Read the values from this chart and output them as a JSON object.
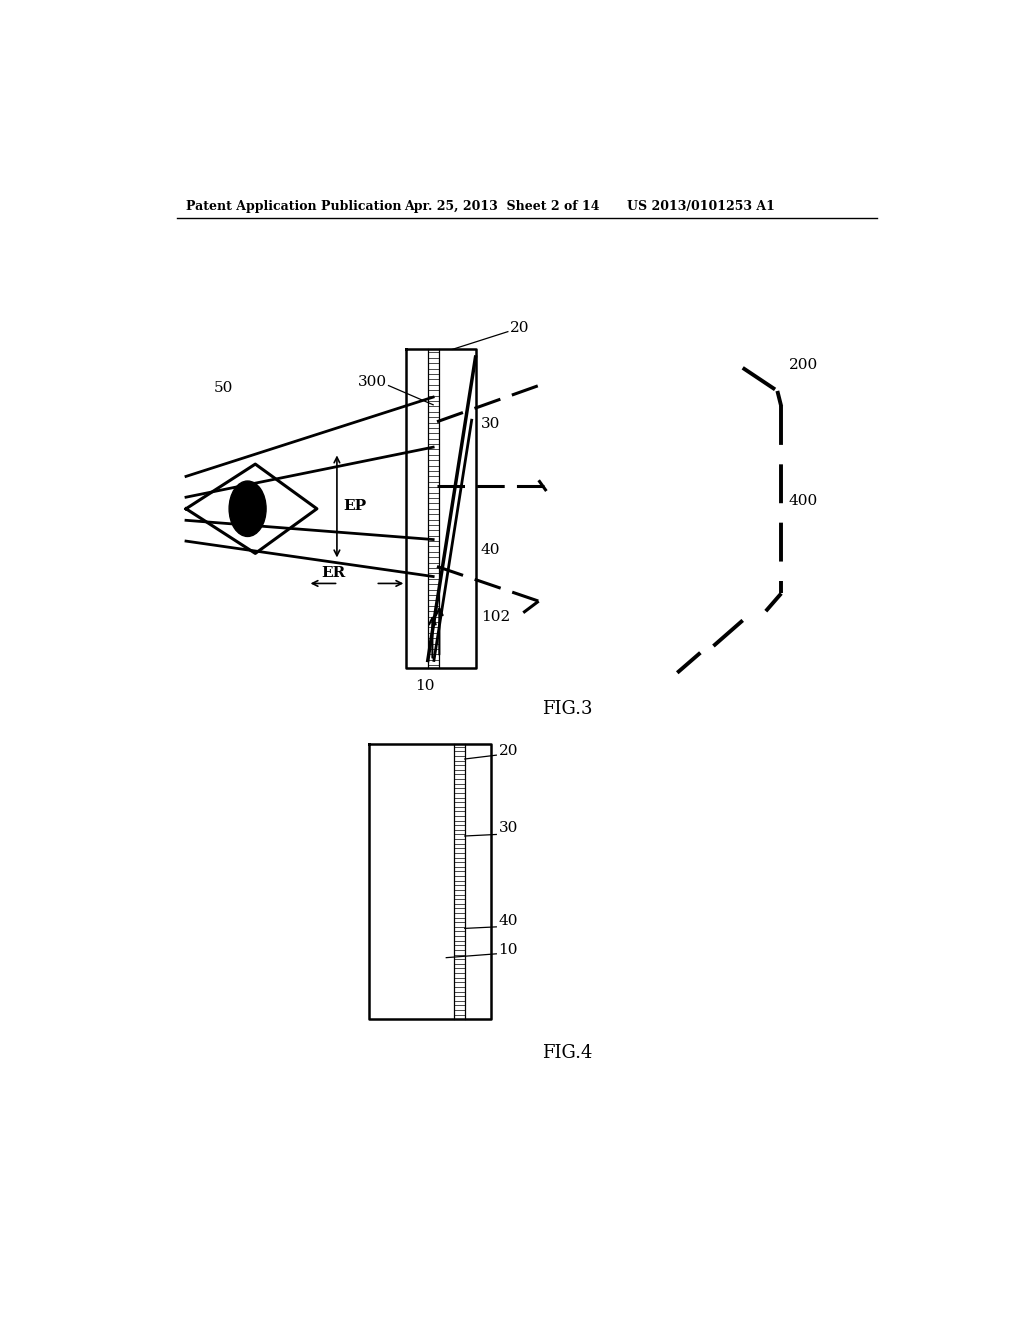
{
  "bg_color": "#ffffff",
  "header_left": "Patent Application Publication",
  "header_mid": "Apr. 25, 2013  Sheet 2 of 14",
  "header_right": "US 2013/0101253 A1",
  "fig3_label": "FIG.3",
  "fig4_label": "FIG.4"
}
